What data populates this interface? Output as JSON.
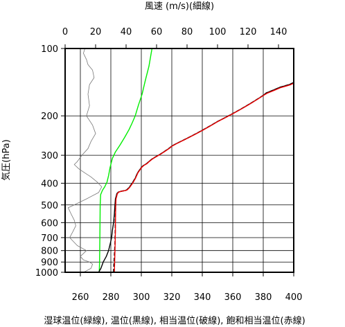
{
  "chart_data": {
    "type": "line",
    "top_axis_label": "風速 (m/s)(細線)",
    "y_axis_label": "気圧(hPa)",
    "bottom_axis_label": "湿球温位(緑線), 温位(黒線), 相当温位(破線), 飽和相当温位(赤線)",
    "x_bottom": {
      "range": [
        250,
        400
      ],
      "ticks": [
        260,
        280,
        300,
        320,
        340,
        360,
        380,
        400
      ],
      "tick_labels": [
        "260",
        "280",
        "300",
        "320",
        "340",
        "360",
        "380",
        "400"
      ]
    },
    "x_top": {
      "range": [
        0,
        150
      ],
      "ticks": [
        0,
        20,
        40,
        60,
        80,
        100,
        120,
        140
      ],
      "tick_labels": [
        "0",
        "20",
        "40",
        "60",
        "80",
        "100",
        "120",
        "140"
      ]
    },
    "y_axis": {
      "scale": "log",
      "reversed": true,
      "range": [
        100,
        1000
      ],
      "ticks": [
        100,
        200,
        300,
        400,
        500,
        600,
        700,
        800,
        900,
        1000
      ],
      "tick_labels": [
        "100",
        "200",
        "300",
        "400",
        "500",
        "600",
        "700",
        "800",
        "900",
        "1000"
      ]
    },
    "grid": true,
    "series": [
      {
        "key": "wet_bulb_potential_temperature",
        "color": "#00ee00",
        "dashed": false,
        "axis": "bottom",
        "points": [
          [
            272.4,
            1000
          ],
          [
            272.6,
            900
          ],
          [
            272.7,
            800
          ],
          [
            272.8,
            700
          ],
          [
            272.9,
            600
          ],
          [
            273.0,
            500
          ],
          [
            273.3,
            450
          ],
          [
            274.5,
            430
          ],
          [
            276,
            415
          ],
          [
            277.5,
            395
          ],
          [
            278.5,
            370
          ],
          [
            279.5,
            340
          ],
          [
            281,
            310
          ],
          [
            283,
            290
          ],
          [
            286,
            270
          ],
          [
            289,
            250
          ],
          [
            292,
            230
          ],
          [
            294,
            215
          ],
          [
            296,
            200
          ],
          [
            298,
            180
          ],
          [
            300.5,
            160
          ],
          [
            302.5,
            140
          ],
          [
            305,
            120
          ],
          [
            307,
            100
          ]
        ]
      },
      {
        "key": "wind_speed",
        "color": "#777777",
        "dashed": false,
        "axis": "top",
        "points": [
          [
            13,
            100
          ],
          [
            12,
            105
          ],
          [
            14,
            112
          ],
          [
            15,
            118
          ],
          [
            18,
            125
          ],
          [
            19,
            135
          ],
          [
            16,
            145
          ],
          [
            15,
            160
          ],
          [
            16,
            180
          ],
          [
            14,
            200
          ],
          [
            18,
            220
          ],
          [
            20,
            240
          ],
          [
            17,
            260
          ],
          [
            15,
            280
          ],
          [
            11,
            300
          ],
          [
            8,
            320
          ],
          [
            6,
            330
          ],
          [
            9,
            345
          ],
          [
            13,
            360
          ],
          [
            17,
            375
          ],
          [
            21,
            395
          ],
          [
            24,
            415
          ],
          [
            22,
            440
          ],
          [
            14,
            470
          ],
          [
            6,
            500
          ],
          [
            2,
            515
          ],
          [
            4,
            550
          ],
          [
            6,
            585
          ],
          [
            7,
            620
          ],
          [
            5,
            660
          ],
          [
            3,
            700
          ],
          [
            8,
            760
          ],
          [
            14,
            800
          ],
          [
            10,
            850
          ],
          [
            12,
            880
          ],
          [
            16,
            900
          ],
          [
            18,
            920
          ],
          [
            17,
            960
          ],
          [
            14,
            985
          ],
          [
            12,
            1000
          ]
        ]
      },
      {
        "key": "potential_temperature",
        "color": "#000000",
        "dashed": false,
        "axis": "bottom",
        "points": [
          [
            272,
            1000
          ],
          [
            273.5,
            960
          ],
          [
            275,
            900
          ],
          [
            277,
            850
          ],
          [
            278.5,
            800
          ],
          [
            279.5,
            750
          ],
          [
            280.5,
            700
          ],
          [
            281,
            650
          ],
          [
            281.8,
            600
          ],
          [
            282.3,
            550
          ],
          [
            282.7,
            500
          ],
          [
            283,
            470
          ],
          [
            284,
            445
          ],
          [
            285,
            438
          ],
          [
            286.5,
            435
          ],
          [
            288,
            433
          ],
          [
            289.5,
            431
          ],
          [
            290.5,
            428
          ],
          [
            292,
            418
          ],
          [
            294,
            400
          ],
          [
            296,
            380
          ],
          [
            297.5,
            360
          ],
          [
            298.5,
            352
          ],
          [
            300,
            340
          ],
          [
            301.5,
            333
          ],
          [
            303.5,
            327
          ],
          [
            305,
            320
          ],
          [
            307,
            312
          ],
          [
            309,
            306
          ],
          [
            312,
            298
          ],
          [
            315,
            289
          ],
          [
            318,
            280
          ],
          [
            320,
            273
          ],
          [
            323,
            266
          ],
          [
            326,
            260
          ],
          [
            329,
            254
          ],
          [
            332,
            248
          ],
          [
            335,
            242
          ],
          [
            338,
            236
          ],
          [
            341,
            230
          ],
          [
            344,
            224
          ],
          [
            347,
            218
          ],
          [
            350,
            212
          ],
          [
            353,
            207
          ],
          [
            356,
            202
          ],
          [
            359,
            197
          ],
          [
            362,
            192
          ],
          [
            365,
            187
          ],
          [
            368,
            182
          ],
          [
            371,
            177
          ],
          [
            374,
            172
          ],
          [
            377,
            167
          ],
          [
            380,
            162
          ],
          [
            382,
            158
          ],
          [
            385,
            155
          ],
          [
            388,
            152
          ],
          [
            391,
            149
          ],
          [
            394,
            147
          ],
          [
            397,
            145
          ],
          [
            400,
            142
          ]
        ]
      },
      {
        "key": "equivalent_potential_temperature",
        "color": "#000000",
        "dashed": true,
        "axis": "bottom",
        "points": [
          [
            281.8,
            1000
          ],
          [
            281.9,
            950
          ],
          [
            282.1,
            900
          ],
          [
            282.3,
            850
          ],
          [
            282.5,
            800
          ],
          [
            282.7,
            750
          ],
          [
            282.8,
            700
          ],
          [
            282.9,
            650
          ],
          [
            282.9,
            600
          ],
          [
            283,
            550
          ],
          [
            283.1,
            500
          ],
          [
            283.2,
            470
          ],
          [
            284,
            445
          ],
          [
            285,
            438
          ],
          [
            286.5,
            435
          ],
          [
            288,
            433
          ],
          [
            289.5,
            431
          ],
          [
            290.5,
            428
          ],
          [
            292,
            418
          ],
          [
            294,
            400
          ],
          [
            296,
            380
          ],
          [
            297.5,
            360
          ],
          [
            298.5,
            352
          ],
          [
            300,
            340
          ],
          [
            301.5,
            333
          ],
          [
            303.5,
            327
          ],
          [
            305,
            320
          ],
          [
            307,
            312
          ],
          [
            309,
            306
          ],
          [
            312,
            298
          ],
          [
            315,
            289
          ],
          [
            318,
            280
          ],
          [
            320,
            273
          ],
          [
            323,
            266
          ],
          [
            326,
            260
          ],
          [
            329,
            254
          ],
          [
            332,
            248
          ],
          [
            335,
            242
          ],
          [
            338,
            236
          ],
          [
            341,
            230
          ],
          [
            344,
            224
          ],
          [
            347,
            218
          ],
          [
            350,
            212
          ],
          [
            353,
            207
          ],
          [
            356,
            202
          ],
          [
            359,
            197
          ],
          [
            362,
            192
          ],
          [
            365,
            187
          ],
          [
            368,
            182
          ],
          [
            371,
            177
          ],
          [
            374,
            172
          ],
          [
            377,
            167
          ],
          [
            380,
            162
          ],
          [
            382,
            158
          ],
          [
            385,
            155
          ],
          [
            388,
            152
          ],
          [
            391,
            149
          ],
          [
            394,
            147
          ],
          [
            397,
            145
          ],
          [
            400,
            142
          ]
        ]
      },
      {
        "key": "saturated_equivalent_potential_temperature",
        "color": "#ee0000",
        "dashed": false,
        "axis": "bottom",
        "points": [
          [
            282.3,
            1000
          ],
          [
            282.4,
            950
          ],
          [
            282.5,
            900
          ],
          [
            282.6,
            850
          ],
          [
            282.7,
            800
          ],
          [
            282.8,
            750
          ],
          [
            282.9,
            700
          ],
          [
            283,
            650
          ],
          [
            283,
            600
          ],
          [
            283.1,
            550
          ],
          [
            283.2,
            500
          ],
          [
            283.4,
            470
          ],
          [
            284.3,
            445
          ],
          [
            285.3,
            438
          ],
          [
            286.8,
            435
          ],
          [
            288.3,
            433
          ],
          [
            289.8,
            431
          ],
          [
            290.8,
            428
          ],
          [
            292.3,
            418
          ],
          [
            294.3,
            400
          ],
          [
            296.2,
            380
          ],
          [
            297.7,
            360
          ],
          [
            298.7,
            352
          ],
          [
            300.2,
            340
          ],
          [
            301.7,
            333
          ],
          [
            303.7,
            327
          ],
          [
            305.2,
            320
          ],
          [
            307.2,
            312
          ],
          [
            309.2,
            306
          ],
          [
            312.2,
            298
          ],
          [
            315.2,
            289
          ],
          [
            318.2,
            280
          ],
          [
            320.2,
            273
          ],
          [
            323.2,
            266
          ],
          [
            326.2,
            260
          ],
          [
            329.2,
            254
          ],
          [
            332.2,
            248
          ],
          [
            335.2,
            242
          ],
          [
            338.2,
            236
          ],
          [
            341.2,
            230
          ],
          [
            344.2,
            224
          ],
          [
            347.2,
            218
          ],
          [
            350.2,
            212
          ],
          [
            353.2,
            207
          ],
          [
            356.2,
            202
          ],
          [
            359.2,
            197
          ],
          [
            362.2,
            192
          ],
          [
            365.2,
            187
          ],
          [
            368.2,
            182
          ],
          [
            371.2,
            177
          ],
          [
            374.2,
            172
          ],
          [
            377.2,
            167
          ],
          [
            380.2,
            162
          ],
          [
            382.5,
            158.5
          ],
          [
            385.5,
            155.5
          ],
          [
            388.5,
            152.5
          ],
          [
            391.5,
            149.5
          ],
          [
            394.5,
            147.5
          ],
          [
            397.5,
            145.5
          ],
          [
            400,
            143
          ]
        ]
      }
    ]
  }
}
